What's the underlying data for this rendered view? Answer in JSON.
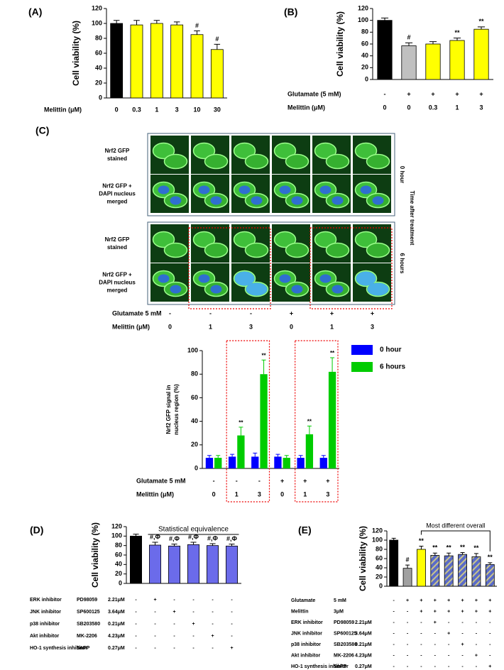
{
  "chart_data": [
    {
      "type": "bar",
      "panel": "(A)",
      "ylabel": "Cell viability (%)",
      "ylim": [
        0,
        120
      ],
      "yticks": [
        0,
        20,
        40,
        60,
        80,
        100,
        120
      ],
      "values": [
        100,
        98,
        100,
        98,
        85,
        65
      ],
      "errors": [
        4,
        6,
        4,
        4,
        5,
        7
      ],
      "annotations": [
        null,
        null,
        null,
        null,
        "#",
        "#"
      ],
      "colors": [
        "#000000",
        "#ffff00",
        "#ffff00",
        "#ffff00",
        "#ffff00",
        "#ffff00"
      ],
      "conditions": [
        {
          "label": "Melittin (μM)",
          "values": [
            "0",
            "0.3",
            "1",
            "3",
            "10",
            "30"
          ]
        }
      ]
    },
    {
      "type": "bar",
      "panel": "(B)",
      "ylabel": "Cell viability (%)",
      "ylim": [
        0,
        120
      ],
      "yticks": [
        0,
        20,
        40,
        60,
        80,
        100,
        120
      ],
      "values": [
        100,
        57,
        60,
        66,
        85
      ],
      "errors": [
        4,
        5,
        4,
        4,
        4
      ],
      "annotations": [
        null,
        "#",
        null,
        "**",
        "**"
      ],
      "colors": [
        "#000000",
        "#c0c0c0",
        "#ffff00",
        "#ffff00",
        "#ffff00"
      ],
      "conditions": [
        {
          "label": "Glutamate (5 mM)",
          "values": [
            "-",
            "+",
            "+",
            "+",
            "+"
          ]
        },
        {
          "label": "Melittin (μM)",
          "values": [
            "0",
            "0",
            "0.3",
            "1",
            "3"
          ]
        }
      ]
    },
    {
      "type": "grouped-bar",
      "ylabel_lines": [
        "Nrf2 GFP signal in",
        "nucleus region (%)"
      ],
      "ylim": [
        0,
        100
      ],
      "yticks": [
        0,
        20,
        40,
        60,
        80,
        100
      ],
      "series": [
        {
          "name": "0 hour",
          "color": "#0000ff",
          "values": [
            9,
            10,
            10,
            10,
            9,
            9
          ],
          "errors": [
            2,
            2,
            3,
            2,
            2,
            2
          ],
          "annotations": [
            null,
            null,
            null,
            null,
            null,
            null
          ]
        },
        {
          "name": "6 hours",
          "color": "#00cc00",
          "values": [
            9,
            28,
            80,
            9,
            29,
            82
          ],
          "errors": [
            2,
            7,
            12,
            2,
            7,
            12
          ],
          "annotations": [
            null,
            "**",
            "**",
            null,
            "**",
            "**"
          ]
        }
      ],
      "conditions": [
        {
          "label": "Glutamate 5 mM",
          "values": [
            "-",
            "-",
            "-",
            "+",
            "+",
            "+"
          ]
        },
        {
          "label": "Melittin (μM)",
          "values": [
            "0",
            "1",
            "3",
            "0",
            "1",
            "3"
          ]
        }
      ]
    },
    {
      "type": "bar",
      "panel": "(D)",
      "ylabel": "Cell viability (%)",
      "ylim": [
        0,
        120
      ],
      "yticks": [
        0,
        20,
        40,
        60,
        80,
        100,
        120
      ],
      "bracket_label": "Statistical equivalence",
      "values": [
        100,
        81,
        79,
        82,
        80,
        79
      ],
      "errors": [
        4,
        6,
        4,
        5,
        4,
        4
      ],
      "annotations": [
        null,
        "#,Φ",
        "#,Φ",
        "#,Φ",
        "#,Φ",
        "#,Φ"
      ],
      "colors": [
        "#000000",
        "#6b6bea",
        "#6b6bea",
        "#6b6bea",
        "#6b6bea",
        "#6b6bea"
      ],
      "conditions": [
        {
          "label": "ERK inhibitor",
          "code": "PD98059",
          "dose": "2.21μM",
          "values": [
            "-",
            "+",
            "-",
            "-",
            "-",
            "-"
          ]
        },
        {
          "label": "JNK inhibitor",
          "code": "SP600125",
          "dose": "3.64μM",
          "values": [
            "-",
            "-",
            "+",
            "-",
            "-",
            "-"
          ]
        },
        {
          "label": "p38 inhibitor",
          "code": "SB203580",
          "dose": "0.21μM",
          "values": [
            "-",
            "-",
            "-",
            "+",
            "-",
            "-"
          ]
        },
        {
          "label": "Akt inhibitor",
          "code": "MK-2206",
          "dose": "4.23μM",
          "values": [
            "-",
            "-",
            "-",
            "-",
            "+",
            "-"
          ]
        },
        {
          "label": "HO-1 synthesis inhibitor",
          "code": "SnPP",
          "dose": "0.27μM",
          "values": [
            "-",
            "-",
            "-",
            "-",
            "-",
            "+"
          ]
        }
      ]
    },
    {
      "type": "bar",
      "panel": "(E)",
      "ylabel": "Cell viability (%)",
      "ylim": [
        0,
        120
      ],
      "yticks": [
        0,
        20,
        40,
        60,
        80,
        100,
        120
      ],
      "bracket_label": "Most different overall",
      "values": [
        100,
        39,
        80,
        67,
        66,
        69,
        64,
        47
      ],
      "errors": [
        4,
        7,
        7,
        5,
        6,
        4,
        7,
        4
      ],
      "annotations": [
        null,
        "#",
        "**",
        "**",
        "**",
        "**",
        "**",
        "**"
      ],
      "colors": [
        "#000000",
        "#a0a0a0",
        "#ffff00",
        "#5a6bc8",
        "#5a6bc8",
        "#5a6bc8",
        "#5a6bc8",
        "#5a6bc8"
      ],
      "hatched": [
        false,
        false,
        false,
        true,
        true,
        true,
        true,
        true
      ],
      "conditions": [
        {
          "label": "Glutamate",
          "code": "5 mM",
          "values": [
            "-",
            "+",
            "+",
            "+",
            "+",
            "+",
            "+",
            "+"
          ]
        },
        {
          "label": "Melittin",
          "code": "3μM",
          "values": [
            "-",
            "-",
            "+",
            "+",
            "+",
            "+",
            "+",
            "+"
          ]
        },
        {
          "label": "ERK inhibitor",
          "code": "PD98059",
          "dose": "2.21μM",
          "values": [
            "-",
            "-",
            "-",
            "+",
            "-",
            "-",
            "-",
            "-"
          ]
        },
        {
          "label": "JNK inhibitor",
          "code": "SP600125",
          "dose": "3.64μM",
          "values": [
            "-",
            "-",
            "-",
            "-",
            "+",
            "-",
            "-",
            "-"
          ]
        },
        {
          "label": "p38 inhibitor",
          "code": "SB203580",
          "dose": "0.21μM",
          "values": [
            "-",
            "-",
            "-",
            "-",
            "-",
            "+",
            "-",
            "-"
          ]
        },
        {
          "label": "Akt inhibitor",
          "code": "MK-2206",
          "dose": "4.23μM",
          "values": [
            "-",
            "-",
            "-",
            "-",
            "-",
            "-",
            "+",
            "-"
          ]
        },
        {
          "label": "HO-1 synthesis inhibitor",
          "code": "SnPP",
          "dose": "0.27μM",
          "values": [
            "-",
            "-",
            "-",
            "-",
            "-",
            "-",
            "-",
            "+"
          ]
        }
      ]
    }
  ],
  "microscopy": {
    "panel": "(C)",
    "row_labels": [
      [
        "Nrf2 GFP",
        "stained"
      ],
      [
        "Nrf2 GFP +",
        "DAPI nucleus",
        "merged"
      ]
    ],
    "time_labels": [
      "0 hour",
      "6 hours"
    ],
    "time_axis_label": "Time after treatment",
    "conditions": [
      {
        "label": "Glutamate 5 mM",
        "values": [
          "-",
          "-",
          "-",
          "+",
          "+",
          "+"
        ]
      },
      {
        "label": "Melittin (μM)",
        "values": [
          "0",
          "1",
          "3",
          "0",
          "1",
          "3"
        ]
      }
    ]
  }
}
